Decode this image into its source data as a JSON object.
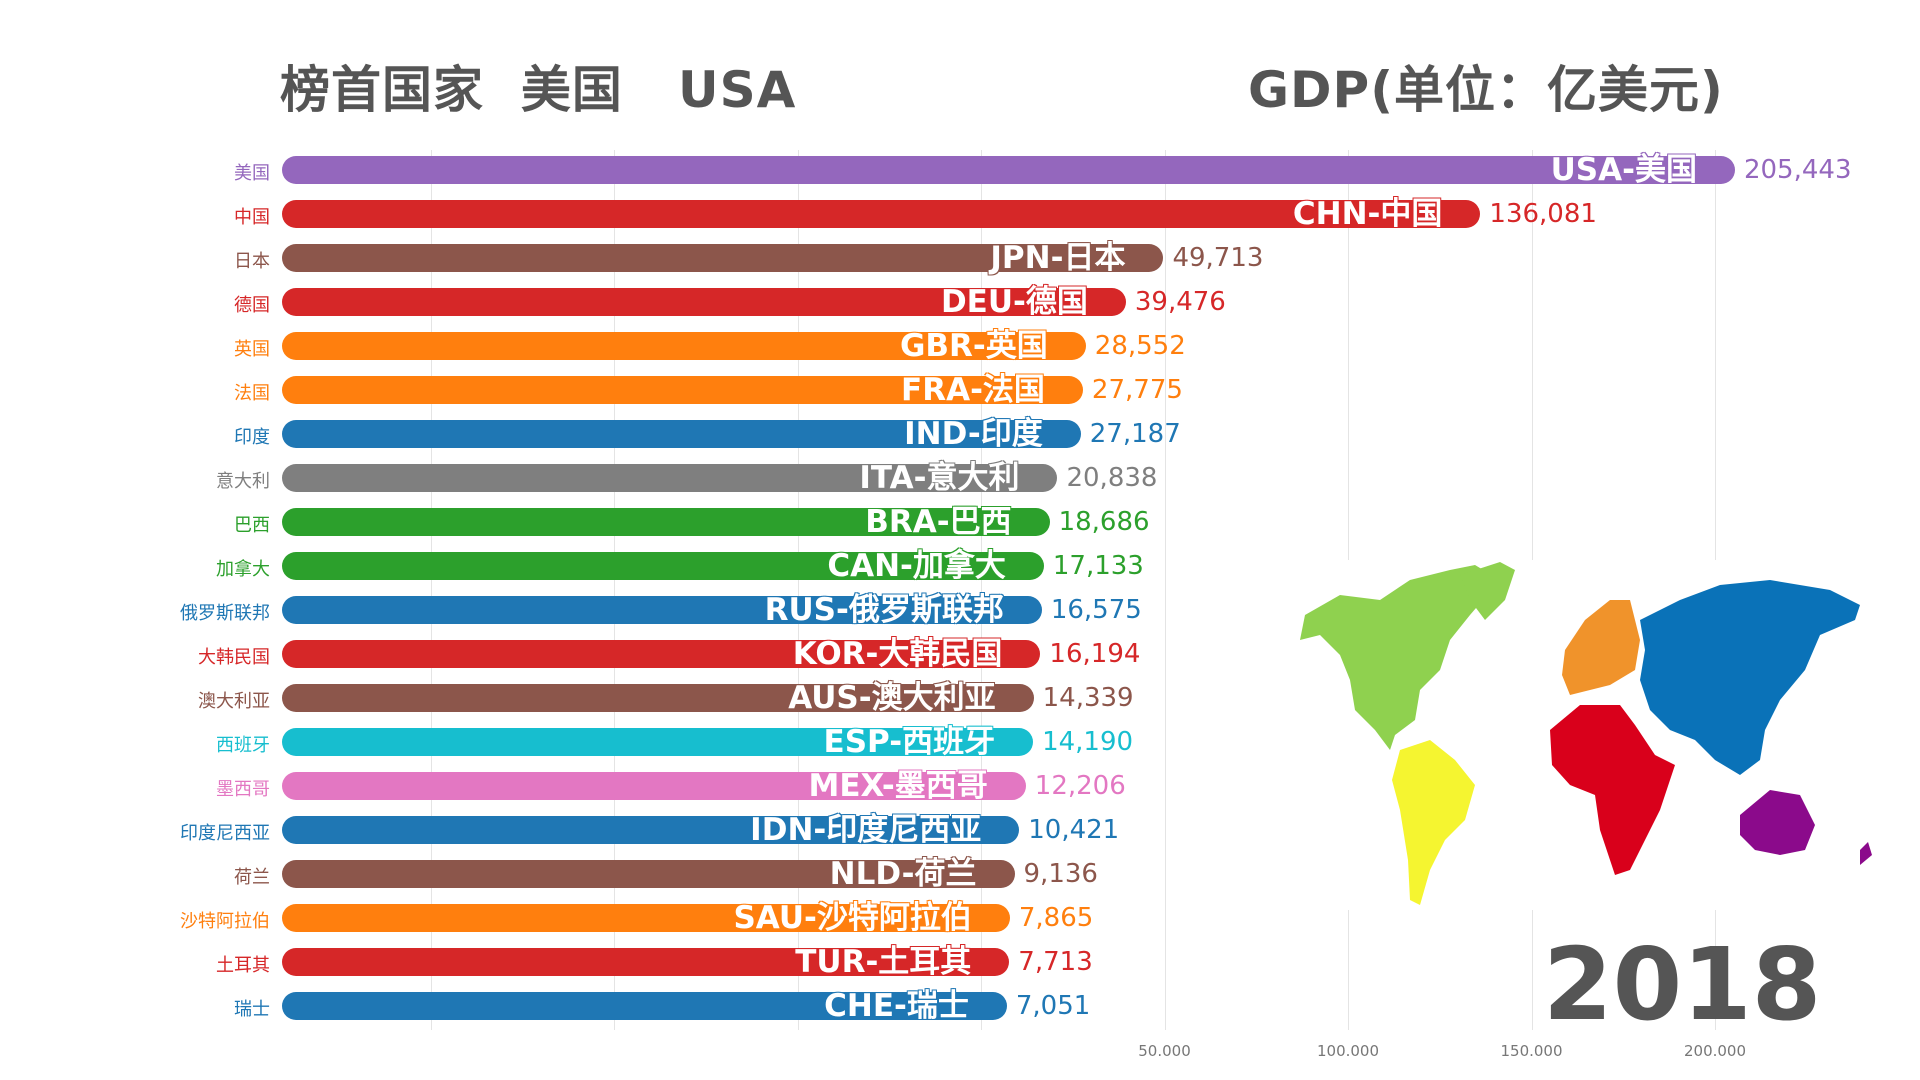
{
  "header": {
    "leader": "榜首国家  美国   USA",
    "unit": "GDP(单位：亿美元)"
  },
  "year": "2018",
  "chart_data": {
    "type": "bar",
    "orientation": "horizontal",
    "title": "GDP(单位：亿美元)",
    "x_ticks": [
      "50.000",
      "100.000",
      "150.000",
      "200.000"
    ],
    "x_tick_values": [
      50000,
      100000,
      150000,
      200000
    ],
    "grid": true,
    "bars": [
      {
        "name": "美国",
        "label": "USA-美国",
        "value": 205443,
        "value_text": "205,443",
        "color": "#9467bd"
      },
      {
        "name": "中国",
        "label": "CHN-中国",
        "value": 136081,
        "value_text": "136,081",
        "color": "#d62728"
      },
      {
        "name": "日本",
        "label": "JPN-日本",
        "value": 49713,
        "value_text": "49,713",
        "color": "#8c564b"
      },
      {
        "name": "德国",
        "label": "DEU-德国",
        "value": 39476,
        "value_text": "39,476",
        "color": "#d62728"
      },
      {
        "name": "英国",
        "label": "GBR-英国",
        "value": 28552,
        "value_text": "28,552",
        "color": "#ff7f0e"
      },
      {
        "name": "法国",
        "label": "FRA-法国",
        "value": 27775,
        "value_text": "27,775",
        "color": "#ff7f0e"
      },
      {
        "name": "印度",
        "label": "IND-印度",
        "value": 27187,
        "value_text": "27,187",
        "color": "#1f77b4"
      },
      {
        "name": "意大利",
        "label": "ITA-意大利",
        "value": 20838,
        "value_text": "20,838",
        "color": "#7f7f7f"
      },
      {
        "name": "巴西",
        "label": "BRA-巴西",
        "value": 18686,
        "value_text": "18,686",
        "color": "#2ca02c"
      },
      {
        "name": "加拿大",
        "label": "CAN-加拿大",
        "value": 17133,
        "value_text": "17,133",
        "color": "#2ca02c"
      },
      {
        "name": "俄罗斯联邦",
        "label": "RUS-俄罗斯联邦",
        "value": 16575,
        "value_text": "16,575",
        "color": "#1f77b4"
      },
      {
        "name": "大韩民国",
        "label": "KOR-大韩民国",
        "value": 16194,
        "value_text": "16,194",
        "color": "#d62728"
      },
      {
        "name": "澳大利亚",
        "label": "AUS-澳大利亚",
        "value": 14339,
        "value_text": "14,339",
        "color": "#8c564b"
      },
      {
        "name": "西班牙",
        "label": "ESP-西班牙",
        "value": 14190,
        "value_text": "14,190",
        "color": "#17becf"
      },
      {
        "name": "墨西哥",
        "label": "MEX-墨西哥",
        "value": 12206,
        "value_text": "12,206",
        "color": "#e377c2"
      },
      {
        "name": "印度尼西亚",
        "label": "IDN-印度尼西亚",
        "value": 10421,
        "value_text": "10,421",
        "color": "#1f77b4"
      },
      {
        "name": "荷兰",
        "label": "NLD-荷兰",
        "value": 9136,
        "value_text": "9,136",
        "color": "#8c564b"
      },
      {
        "name": "沙特阿拉伯",
        "label": "SAU-沙特阿拉伯",
        "value": 7865,
        "value_text": "7,865",
        "color": "#ff7f0e"
      },
      {
        "name": "土耳其",
        "label": "TUR-土耳其",
        "value": 7713,
        "value_text": "7,713",
        "color": "#d62728"
      },
      {
        "name": "瑞士",
        "label": "CHE-瑞士",
        "value": 7051,
        "value_text": "7,051",
        "color": "#1f77b4"
      }
    ]
  },
  "map_colors": {
    "north_america": "#8fd14f",
    "south_america": "#f5f530",
    "europe": "#f0932b",
    "africa": "#d9001b",
    "asia": "#0a72b8",
    "oceania": "#8b0a8b"
  }
}
